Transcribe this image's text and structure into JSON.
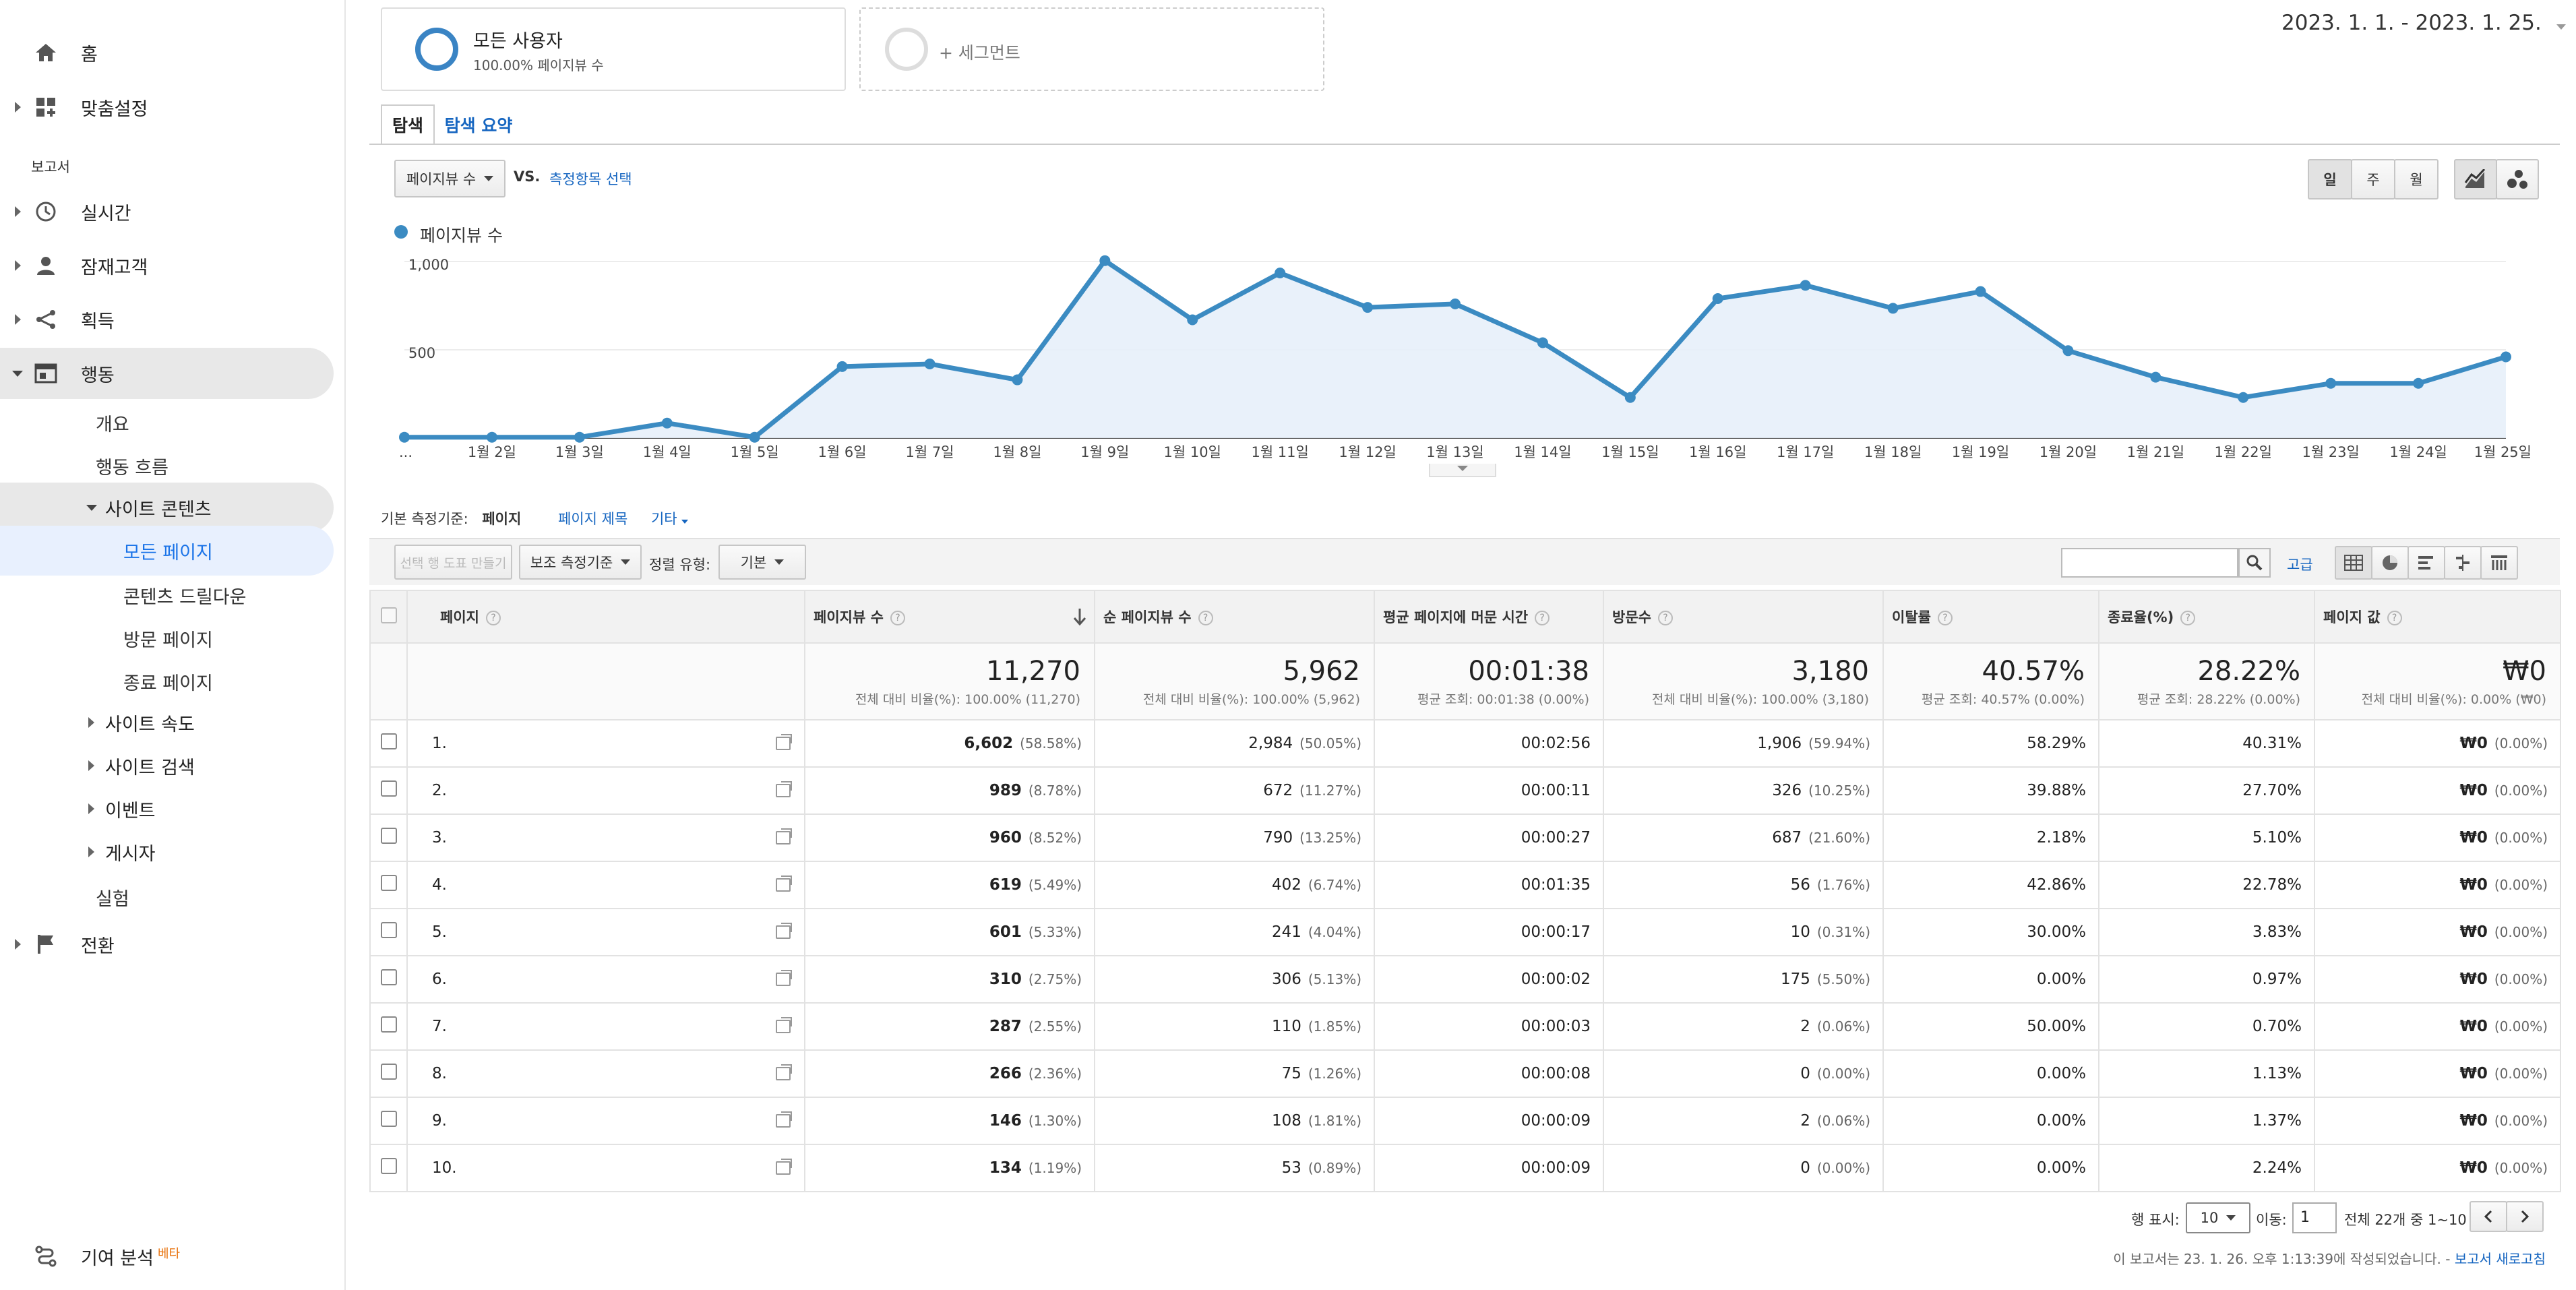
{
  "sidebar": {
    "home": "홈",
    "custom": "맞춤설정",
    "reports_section": "보고서",
    "realtime": "실시간",
    "audience": "잠재고객",
    "acquisition": "획득",
    "behavior": "행동",
    "overview": "개요",
    "behavior_flow": "행동 흐름",
    "site_content": "사이트 콘텐츠",
    "all_pages": "모든 페이지",
    "content_drilldown": "콘텐츠 드릴다운",
    "landing_pages": "방문 페이지",
    "exit_pages": "종료 페이지",
    "site_speed": "사이트 속도",
    "site_search": "사이트 검색",
    "events": "이벤트",
    "publisher": "게시자",
    "experiments": "실험",
    "conversions": "전환",
    "attribution": "기여 분석",
    "beta": "베타"
  },
  "segments": {
    "all_users": "모든 사용자",
    "all_users_sub": "100.00% 페이지뷰 수",
    "add_segment": "+ 세그먼트"
  },
  "date_range": "2023. 1. 1. - 2023. 1. 25.",
  "tabs": {
    "explore": "탐색",
    "summary": "탐색 요약"
  },
  "metric_select": {
    "value": "페이지뷰 수",
    "vs": "VS.",
    "choose": "측정항목 선택"
  },
  "period_buttons": {
    "day": "일",
    "week": "주",
    "month": "월"
  },
  "chart_data": {
    "type": "line",
    "legend": "페이지뷰 수",
    "x": [
      "...",
      "1월 2일",
      "1월 3일",
      "1월 4일",
      "1월 5일",
      "1월 6일",
      "1월 7일",
      "1월 8일",
      "1월 9일",
      "1월 10일",
      "1월 11일",
      "1월 12일",
      "1월 13일",
      "1월 14일",
      "1월 15일",
      "1월 16일",
      "1월 17일",
      "1월 18일",
      "1월 19일",
      "1월 20일",
      "1월 21일",
      "1월 22일",
      "1월 23일",
      "1월 24일",
      "1월 25일"
    ],
    "values": [
      5,
      5,
      5,
      85,
      5,
      405,
      420,
      330,
      1005,
      670,
      935,
      740,
      760,
      540,
      230,
      790,
      865,
      735,
      830,
      495,
      345,
      230,
      310,
      310,
      460
    ],
    "yticks": [
      "1,000",
      "500"
    ],
    "ylim": [
      0,
      1000
    ],
    "color": "#3b8bc2"
  },
  "dimension_bar": {
    "label": "기본 측정기준:",
    "page": "페이지",
    "page_title": "페이지 제목",
    "other": "기타"
  },
  "table_tools": {
    "create_chart": "선택 행 도표 만들기",
    "secondary": "보조 측정기준",
    "sort_type_label": "정렬 유형:",
    "sort_type": "기본",
    "advanced": "고급"
  },
  "columns": {
    "page": "페이지",
    "pageviews": "페이지뷰 수",
    "unique_pageviews": "순 페이지뷰 수",
    "avg_time": "평균 페이지에 머문 시간",
    "entrances": "방문수",
    "bounce_rate": "이탈률",
    "exit_pct": "종료율(%)",
    "page_value": "페이지 값"
  },
  "totals": {
    "pageviews": "11,270",
    "pageviews_sub": "전체 대비 비율(%): 100.00% (11,270)",
    "unique_pageviews": "5,962",
    "unique_pageviews_sub": "전체 대비 비율(%): 100.00% (5,962)",
    "avg_time": "00:01:38",
    "avg_time_sub": "평균 조회: 00:01:38 (0.00%)",
    "entrances": "3,180",
    "entrances_sub": "전체 대비 비율(%): 100.00% (3,180)",
    "bounce_rate": "40.57%",
    "bounce_rate_sub": "평균 조회: 40.57% (0.00%)",
    "exit_pct": "28.22%",
    "exit_pct_sub": "평균 조회: 28.22% (0.00%)",
    "page_value": "₩0",
    "page_value_sub": "전체 대비 비율(%): 0.00% (₩0)"
  },
  "rows": [
    {
      "n": "1.",
      "pv": "6,602",
      "pvp": "(58.58%)",
      "upv": "2,984",
      "upvp": "(50.05%)",
      "t": "00:02:56",
      "e": "1,906",
      "ep": "(59.94%)",
      "b": "58.29%",
      "x": "40.31%",
      "v": "₩0",
      "vp": "(0.00%)"
    },
    {
      "n": "2.",
      "pv": "989",
      "pvp": "(8.78%)",
      "upv": "672",
      "upvp": "(11.27%)",
      "t": "00:00:11",
      "e": "326",
      "ep": "(10.25%)",
      "b": "39.88%",
      "x": "27.70%",
      "v": "₩0",
      "vp": "(0.00%)"
    },
    {
      "n": "3.",
      "pv": "960",
      "pvp": "(8.52%)",
      "upv": "790",
      "upvp": "(13.25%)",
      "t": "00:00:27",
      "e": "687",
      "ep": "(21.60%)",
      "b": "2.18%",
      "x": "5.10%",
      "v": "₩0",
      "vp": "(0.00%)"
    },
    {
      "n": "4.",
      "pv": "619",
      "pvp": "(5.49%)",
      "upv": "402",
      "upvp": "(6.74%)",
      "t": "00:01:35",
      "e": "56",
      "ep": "(1.76%)",
      "b": "42.86%",
      "x": "22.78%",
      "v": "₩0",
      "vp": "(0.00%)"
    },
    {
      "n": "5.",
      "pv": "601",
      "pvp": "(5.33%)",
      "upv": "241",
      "upvp": "(4.04%)",
      "t": "00:00:17",
      "e": "10",
      "ep": "(0.31%)",
      "b": "30.00%",
      "x": "3.83%",
      "v": "₩0",
      "vp": "(0.00%)"
    },
    {
      "n": "6.",
      "pv": "310",
      "pvp": "(2.75%)",
      "upv": "306",
      "upvp": "(5.13%)",
      "t": "00:00:02",
      "e": "175",
      "ep": "(5.50%)",
      "b": "0.00%",
      "x": "0.97%",
      "v": "₩0",
      "vp": "(0.00%)"
    },
    {
      "n": "7.",
      "pv": "287",
      "pvp": "(2.55%)",
      "upv": "110",
      "upvp": "(1.85%)",
      "t": "00:00:03",
      "e": "2",
      "ep": "(0.06%)",
      "b": "50.00%",
      "x": "0.70%",
      "v": "₩0",
      "vp": "(0.00%)"
    },
    {
      "n": "8.",
      "pv": "266",
      "pvp": "(2.36%)",
      "upv": "75",
      "upvp": "(1.26%)",
      "t": "00:00:08",
      "e": "0",
      "ep": "(0.00%)",
      "b": "0.00%",
      "x": "1.13%",
      "v": "₩0",
      "vp": "(0.00%)"
    },
    {
      "n": "9.",
      "pv": "146",
      "pvp": "(1.30%)",
      "upv": "108",
      "upvp": "(1.81%)",
      "t": "00:00:09",
      "e": "2",
      "ep": "(0.06%)",
      "b": "0.00%",
      "x": "1.37%",
      "v": "₩0",
      "vp": "(0.00%)"
    },
    {
      "n": "10.",
      "pv": "134",
      "pvp": "(1.19%)",
      "upv": "53",
      "upvp": "(0.89%)",
      "t": "00:00:09",
      "e": "0",
      "ep": "(0.00%)",
      "b": "0.00%",
      "x": "2.24%",
      "v": "₩0",
      "vp": "(0.00%)"
    }
  ],
  "pagination": {
    "rows_label": "행 표시:",
    "rows_value": "10",
    "goto_label": "이동:",
    "goto_value": "1",
    "range": "전체 22개 중 1~10"
  },
  "footer": {
    "created": "이 보고서는 23. 1. 26. 오후 1:13:39에 작성되었습니다. -",
    "refresh": "보고서 새로고침"
  }
}
